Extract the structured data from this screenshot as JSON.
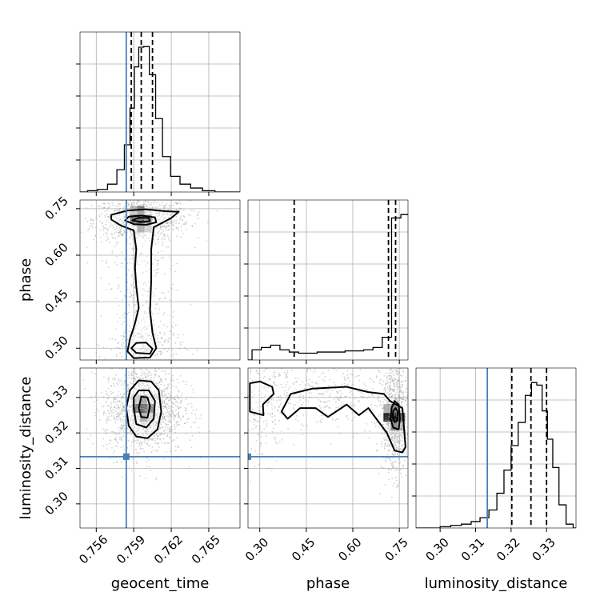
{
  "chart_data": {
    "type": "corner",
    "params": [
      "geocent_time",
      "phase",
      "luminosity_distance"
    ],
    "truth": {
      "geocent_time": 0.7584,
      "phase": null,
      "luminosity_distance": 0.3133
    },
    "colors": {
      "truth": "#4a7fb5",
      "hist": "#000000",
      "grid": "#b0b0b0",
      "scatter": "#9a9a9a"
    },
    "axes": {
      "geocent_time": {
        "range": [
          0.7547,
          0.7675
        ],
        "ticks": [
          0.756,
          0.759,
          0.762,
          0.765
        ],
        "tick_labels": [
          "0.756",
          "0.759",
          "0.762",
          "0.765"
        ]
      },
      "phase": {
        "range": [
          0.262,
          0.778
        ],
        "ticks": [
          0.3,
          0.45,
          0.6,
          0.75
        ],
        "tick_labels": [
          "0.30",
          "0.45",
          "0.60",
          "0.75"
        ]
      },
      "luminosity_distance": {
        "range": [
          0.2932,
          0.3383
        ],
        "ticks": [
          0.3,
          0.31,
          0.32,
          0.33
        ],
        "tick_labels": [
          "0.30",
          "0.31",
          "0.32",
          "0.33"
        ]
      }
    },
    "histograms": {
      "geocent_time": {
        "x": [
          0.7557,
          0.7565,
          0.7573,
          0.758,
          0.7585,
          0.7589,
          0.7592,
          0.7596,
          0.76,
          0.7605,
          0.761,
          0.7616,
          0.7623,
          0.7631,
          0.764,
          0.765
        ],
        "y": [
          2,
          4,
          12,
          34,
          72,
          128,
          191,
          221,
          222,
          179,
          112,
          54,
          24,
          12,
          6,
          2
        ],
        "quantiles": [
          0.7588,
          0.7596,
          0.7605
        ]
      },
      "phase": {
        "x": [
          0.29,
          0.32,
          0.35,
          0.38,
          0.41,
          0.44,
          0.47,
          0.5,
          0.53,
          0.56,
          0.59,
          0.62,
          0.65,
          0.68,
          0.71,
          0.74,
          0.77
        ],
        "y": [
          9,
          11,
          13,
          9,
          7,
          6,
          6,
          7,
          7,
          7,
          8,
          8,
          9,
          11,
          20,
          125,
          128
        ],
        "quantiles": [
          0.411,
          0.715,
          0.738
        ]
      },
      "luminosity_distance": {
        "x": [
          0.3015,
          0.3045,
          0.3075,
          0.31,
          0.3125,
          0.315,
          0.317,
          0.319,
          0.321,
          0.323,
          0.325,
          0.3265,
          0.328,
          0.3295,
          0.331,
          0.3325,
          0.3345,
          0.3365
        ],
        "y": [
          1,
          2,
          3,
          5,
          8,
          14,
          27,
          45,
          64,
          82,
          103,
          113,
          111,
          91,
          69,
          47,
          18,
          3
        ],
        "quantiles": [
          0.3202,
          0.3256,
          0.33
        ]
      }
    },
    "densities": {
      "phase_vs_geocent_time": [
        {
          "x": 0.7596,
          "y": 0.715,
          "sx": 0.0012,
          "sy": 0.022,
          "w": 0.55
        },
        {
          "x": 0.7596,
          "y": 0.5,
          "sx": 0.0009,
          "sy": 0.12,
          "w": 0.3
        },
        {
          "x": 0.7598,
          "y": 0.31,
          "sx": 0.0009,
          "sy": 0.025,
          "w": 0.15
        }
      ],
      "luminosity_distance_vs_geocent_time": [
        {
          "x": 0.7598,
          "y": 0.3268,
          "sx": 0.001,
          "sy": 0.004,
          "w": 1.0
        }
      ],
      "luminosity_distance_vs_phase": [
        {
          "x": 0.735,
          "y": 0.3243,
          "sx": 0.013,
          "sy": 0.005,
          "w": 0.55
        },
        {
          "x": 0.3,
          "y": 0.328,
          "sx": 0.03,
          "sy": 0.005,
          "w": 0.15
        },
        {
          "x": 0.5,
          "y": 0.331,
          "sx": 0.09,
          "sy": 0.003,
          "w": 0.3
        }
      ]
    },
    "contours": {
      "phase_vs_geocent_time": [
        [
          [
            0.7572,
            0.715
          ],
          [
            0.758,
            0.695
          ],
          [
            0.759,
            0.68
          ],
          [
            0.7592,
            0.62
          ],
          [
            0.7591,
            0.56
          ],
          [
            0.7592,
            0.5
          ],
          [
            0.7594,
            0.43
          ],
          [
            0.7591,
            0.38
          ],
          [
            0.7587,
            0.33
          ],
          [
            0.7585,
            0.29
          ],
          [
            0.759,
            0.268
          ],
          [
            0.7603,
            0.27
          ],
          [
            0.7608,
            0.3
          ],
          [
            0.7605,
            0.35
          ],
          [
            0.7603,
            0.42
          ],
          [
            0.7604,
            0.52
          ],
          [
            0.7604,
            0.62
          ],
          [
            0.7606,
            0.69
          ],
          [
            0.762,
            0.72
          ],
          [
            0.7626,
            0.74
          ],
          [
            0.7615,
            0.742
          ],
          [
            0.76,
            0.748
          ],
          [
            0.7585,
            0.744
          ],
          [
            0.7572,
            0.73
          ]
        ],
        [
          [
            0.7583,
            0.712
          ],
          [
            0.759,
            0.7
          ],
          [
            0.76,
            0.698
          ],
          [
            0.7608,
            0.706
          ],
          [
            0.7607,
            0.722
          ],
          [
            0.7596,
            0.728
          ],
          [
            0.7586,
            0.724
          ]
        ],
        [
          [
            0.7589,
            0.712
          ],
          [
            0.7596,
            0.707
          ],
          [
            0.7603,
            0.71
          ],
          [
            0.7602,
            0.72
          ],
          [
            0.7594,
            0.721
          ]
        ],
        [
          [
            0.7588,
            0.3
          ],
          [
            0.7592,
            0.285
          ],
          [
            0.7603,
            0.282
          ],
          [
            0.7605,
            0.298
          ],
          [
            0.76,
            0.318
          ],
          [
            0.7592,
            0.317
          ]
        ]
      ],
      "luminosity_distance_vs_geocent_time": [
        [
          [
            0.7584,
            0.327
          ],
          [
            0.7586,
            0.322
          ],
          [
            0.7592,
            0.319
          ],
          [
            0.7601,
            0.3185
          ],
          [
            0.7609,
            0.321
          ],
          [
            0.7612,
            0.326
          ],
          [
            0.761,
            0.332
          ],
          [
            0.7604,
            0.3345
          ],
          [
            0.7594,
            0.3348
          ],
          [
            0.7587,
            0.332
          ]
        ],
        [
          [
            0.759,
            0.327
          ],
          [
            0.7592,
            0.3225
          ],
          [
            0.76,
            0.3215
          ],
          [
            0.7606,
            0.324
          ],
          [
            0.7607,
            0.329
          ],
          [
            0.7602,
            0.332
          ],
          [
            0.7594,
            0.332
          ],
          [
            0.759,
            0.33
          ]
        ],
        [
          [
            0.7594,
            0.327
          ],
          [
            0.7596,
            0.3245
          ],
          [
            0.7601,
            0.3243
          ],
          [
            0.7603,
            0.3275
          ],
          [
            0.7601,
            0.33
          ],
          [
            0.7596,
            0.3302
          ]
        ]
      ],
      "luminosity_distance_vs_phase": [
        [
          [
            0.268,
            0.334
          ],
          [
            0.3,
            0.3345
          ],
          [
            0.34,
            0.333
          ],
          [
            0.345,
            0.331
          ],
          [
            0.31,
            0.328
          ],
          [
            0.312,
            0.325
          ],
          [
            0.268,
            0.326
          ]
        ],
        [
          [
            0.37,
            0.326
          ],
          [
            0.4,
            0.331
          ],
          [
            0.47,
            0.3325
          ],
          [
            0.58,
            0.333
          ],
          [
            0.65,
            0.3315
          ],
          [
            0.7,
            0.331
          ],
          [
            0.72,
            0.329
          ],
          [
            0.76,
            0.327
          ],
          [
            0.77,
            0.316
          ],
          [
            0.76,
            0.3145
          ],
          [
            0.735,
            0.315
          ],
          [
            0.71,
            0.32
          ],
          [
            0.65,
            0.327
          ],
          [
            0.62,
            0.325
          ],
          [
            0.58,
            0.328
          ],
          [
            0.52,
            0.3245
          ],
          [
            0.48,
            0.327
          ],
          [
            0.43,
            0.327
          ],
          [
            0.39,
            0.324
          ]
        ],
        [
          [
            0.722,
            0.324
          ],
          [
            0.73,
            0.3215
          ],
          [
            0.748,
            0.321
          ],
          [
            0.752,
            0.324
          ],
          [
            0.748,
            0.328
          ],
          [
            0.735,
            0.329
          ],
          [
            0.725,
            0.327
          ]
        ],
        [
          [
            0.728,
            0.3245
          ],
          [
            0.735,
            0.323
          ],
          [
            0.744,
            0.3235
          ],
          [
            0.745,
            0.326
          ],
          [
            0.738,
            0.327
          ],
          [
            0.73,
            0.3262
          ]
        ]
      ]
    }
  }
}
